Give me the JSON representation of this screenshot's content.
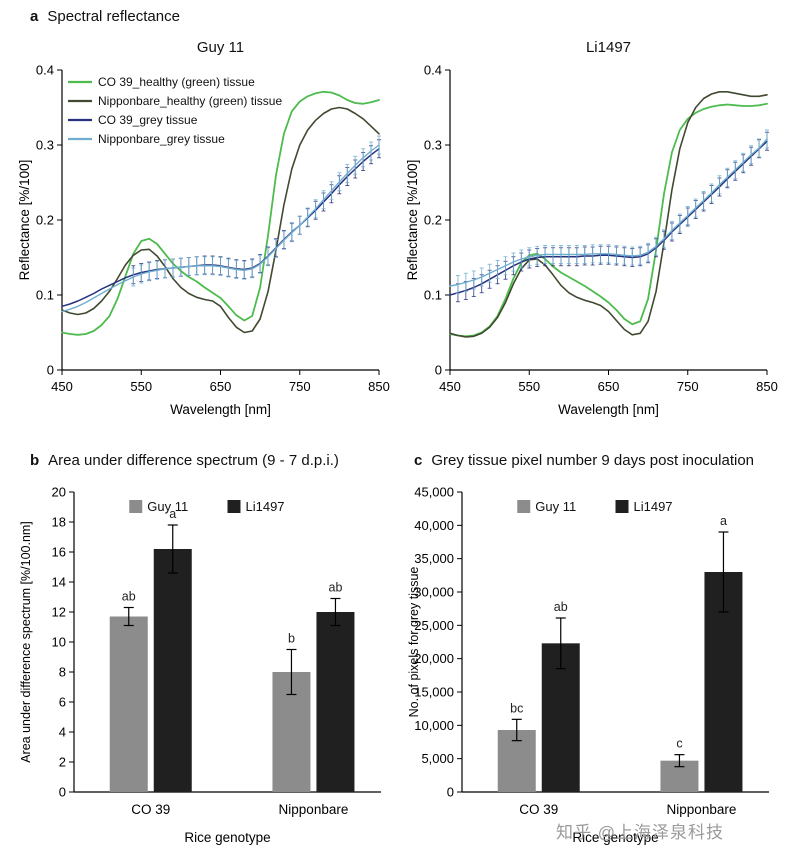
{
  "panels": {
    "a": {
      "letter": "a",
      "title": "Spectral reflectance"
    },
    "b": {
      "letter": "b",
      "title": "Area under difference spectrum (9 - 7 d.p.i.)"
    },
    "c": {
      "letter": "c",
      "title": "Grey tissue pixel number 9 days post inoculation"
    }
  },
  "watermark": "知乎 @上海泽泉科技",
  "colors": {
    "healthy_co39": "#4dbb4d",
    "healthy_nipponbare": "#404a30",
    "grey_co39": "#27317e",
    "grey_nipponbare": "#6faecf",
    "bar_guy11": "#8c8c8c",
    "bar_li1497": "#202020"
  },
  "chart_data": [
    {
      "type": "line",
      "title": "Guy 11",
      "xlabel": "Wavelength [nm]",
      "ylabel": "Reflectance [%/100]",
      "xlim": [
        450,
        850
      ],
      "ylim": [
        0,
        0.4
      ],
      "xticks": [
        450,
        550,
        650,
        750,
        850
      ],
      "yticks": [
        0,
        0.1,
        0.2,
        0.3,
        0.4
      ],
      "legend": true,
      "x": {
        "start": 450,
        "step": 10,
        "count": 41
      },
      "series": [
        {
          "name": "CO 39_healthy (green) tissue",
          "color": "#4dbb4d",
          "width": 1.8,
          "y": [
            0.05,
            0.048,
            0.047,
            0.048,
            0.052,
            0.06,
            0.072,
            0.095,
            0.125,
            0.155,
            0.172,
            0.175,
            0.168,
            0.155,
            0.142,
            0.132,
            0.124,
            0.118,
            0.11,
            0.103,
            0.096,
            0.085,
            0.073,
            0.066,
            0.072,
            0.11,
            0.18,
            0.26,
            0.315,
            0.345,
            0.358,
            0.365,
            0.369,
            0.371,
            0.37,
            0.366,
            0.36,
            0.356,
            0.355,
            0.357,
            0.36
          ]
        },
        {
          "name": "Nipponbare_healthy (green) tissue",
          "color": "#404a30",
          "width": 1.6,
          "y": [
            0.08,
            0.076,
            0.074,
            0.076,
            0.082,
            0.092,
            0.105,
            0.122,
            0.14,
            0.153,
            0.16,
            0.161,
            0.152,
            0.138,
            0.122,
            0.11,
            0.102,
            0.097,
            0.094,
            0.092,
            0.085,
            0.07,
            0.057,
            0.05,
            0.052,
            0.068,
            0.105,
            0.16,
            0.22,
            0.268,
            0.3,
            0.32,
            0.333,
            0.342,
            0.348,
            0.35,
            0.348,
            0.342,
            0.335,
            0.325,
            0.315
          ]
        },
        {
          "name": "CO 39_grey tissue",
          "color": "#27317e",
          "width": 1.5,
          "error": 0.012,
          "error_from": 540,
          "y": [
            0.085,
            0.088,
            0.092,
            0.097,
            0.102,
            0.108,
            0.113,
            0.118,
            0.123,
            0.127,
            0.13,
            0.132,
            0.134,
            0.135,
            0.136,
            0.137,
            0.138,
            0.139,
            0.14,
            0.14,
            0.139,
            0.137,
            0.135,
            0.134,
            0.136,
            0.142,
            0.152,
            0.163,
            0.174,
            0.184,
            0.193,
            0.203,
            0.213,
            0.224,
            0.235,
            0.247,
            0.258,
            0.268,
            0.278,
            0.287,
            0.295
          ]
        },
        {
          "name": "Nipponbare_grey tissue",
          "color": "#6faecf",
          "width": 1.4,
          "error": 0.012,
          "error_from": 540,
          "y": [
            0.078,
            0.081,
            0.085,
            0.09,
            0.096,
            0.102,
            0.108,
            0.114,
            0.119,
            0.124,
            0.128,
            0.131,
            0.133,
            0.135,
            0.136,
            0.137,
            0.138,
            0.139,
            0.139,
            0.139,
            0.138,
            0.136,
            0.134,
            0.133,
            0.135,
            0.141,
            0.151,
            0.162,
            0.173,
            0.183,
            0.193,
            0.204,
            0.215,
            0.227,
            0.239,
            0.251,
            0.262,
            0.273,
            0.283,
            0.292,
            0.3
          ]
        }
      ]
    },
    {
      "type": "line",
      "title": "Li1497",
      "xlabel": "Wavelength [nm]",
      "ylabel": "Reflectance [%/100]",
      "xlim": [
        450,
        850
      ],
      "ylim": [
        0,
        0.4
      ],
      "xticks": [
        450,
        550,
        650,
        750,
        850
      ],
      "yticks": [
        0,
        0.1,
        0.2,
        0.3,
        0.4
      ],
      "legend": false,
      "x": {
        "start": 450,
        "step": 10,
        "count": 41
      },
      "series": [
        {
          "name": "CO 39_healthy (green) tissue",
          "color": "#4dbb4d",
          "width": 1.8,
          "y": [
            0.048,
            0.046,
            0.045,
            0.046,
            0.05,
            0.058,
            0.072,
            0.095,
            0.122,
            0.143,
            0.153,
            0.155,
            0.148,
            0.138,
            0.13,
            0.124,
            0.118,
            0.112,
            0.105,
            0.098,
            0.09,
            0.08,
            0.068,
            0.061,
            0.065,
            0.095,
            0.16,
            0.235,
            0.29,
            0.32,
            0.335,
            0.343,
            0.348,
            0.351,
            0.353,
            0.354,
            0.353,
            0.352,
            0.352,
            0.353,
            0.355
          ]
        },
        {
          "name": "Nipponbare_healthy (green) tissue",
          "color": "#404a30",
          "width": 1.6,
          "y": [
            0.049,
            0.046,
            0.044,
            0.045,
            0.049,
            0.057,
            0.07,
            0.09,
            0.115,
            0.135,
            0.147,
            0.148,
            0.14,
            0.127,
            0.113,
            0.103,
            0.097,
            0.093,
            0.09,
            0.086,
            0.078,
            0.066,
            0.054,
            0.047,
            0.049,
            0.065,
            0.105,
            0.17,
            0.24,
            0.295,
            0.33,
            0.35,
            0.362,
            0.368,
            0.371,
            0.371,
            0.369,
            0.367,
            0.365,
            0.365,
            0.367
          ]
        },
        {
          "name": "CO 39_grey tissue",
          "color": "#27317e",
          "width": 1.5,
          "error": 0.012,
          "error_from": 460,
          "y": [
            0.1,
            0.103,
            0.106,
            0.11,
            0.115,
            0.121,
            0.127,
            0.133,
            0.139,
            0.144,
            0.148,
            0.15,
            0.151,
            0.151,
            0.151,
            0.151,
            0.151,
            0.152,
            0.152,
            0.153,
            0.153,
            0.152,
            0.151,
            0.15,
            0.151,
            0.155,
            0.163,
            0.173,
            0.184,
            0.194,
            0.204,
            0.214,
            0.224,
            0.234,
            0.244,
            0.255,
            0.265,
            0.275,
            0.285,
            0.295,
            0.305
          ]
        },
        {
          "name": "Nipponbare_grey tissue",
          "color": "#6faecf",
          "width": 1.4,
          "error": 0.012,
          "error_from": 460,
          "y": [
            0.112,
            0.114,
            0.117,
            0.12,
            0.124,
            0.129,
            0.134,
            0.139,
            0.144,
            0.148,
            0.151,
            0.153,
            0.154,
            0.154,
            0.154,
            0.154,
            0.154,
            0.154,
            0.155,
            0.155,
            0.155,
            0.154,
            0.153,
            0.152,
            0.153,
            0.157,
            0.165,
            0.175,
            0.186,
            0.196,
            0.206,
            0.216,
            0.226,
            0.236,
            0.247,
            0.257,
            0.267,
            0.277,
            0.287,
            0.296,
            0.308
          ]
        }
      ]
    },
    {
      "type": "bar",
      "title": "Area under difference spectrum (9 - 7 d.p.i.)",
      "categories": [
        "CO 39",
        "Nipponbare"
      ],
      "series": [
        {
          "name": "Guy 11",
          "color": "#8c8c8c",
          "values": [
            11.7,
            8.0
          ],
          "errors": [
            0.6,
            1.5
          ],
          "letters": [
            "ab",
            "b"
          ]
        },
        {
          "name": "Li1497",
          "color": "#202020",
          "values": [
            16.2,
            12.0
          ],
          "errors": [
            1.6,
            0.9
          ],
          "letters": [
            "a",
            "ab"
          ]
        }
      ],
      "ylabel": "Area under difference spectrum [%/100.nm]",
      "xlabel": "Rice genotype",
      "ylim": [
        0,
        20
      ],
      "ytick_step": 2,
      "comma": false
    },
    {
      "type": "bar",
      "title": "Grey tissue pixel number 9 days post inoculation",
      "categories": [
        "CO 39",
        "Nipponbare"
      ],
      "series": [
        {
          "name": "Guy 11",
          "color": "#8c8c8c",
          "values": [
            9300,
            4700
          ],
          "errors": [
            1600,
            900
          ],
          "letters": [
            "bc",
            "c"
          ]
        },
        {
          "name": "Li1497",
          "color": "#202020",
          "values": [
            22300,
            33000
          ],
          "errors": [
            3800,
            6000
          ],
          "letters": [
            "ab",
            "a"
          ]
        }
      ],
      "ylabel": "No. of pixels for grey tissue",
      "xlabel": "Rice genotype",
      "ylim": [
        0,
        45000
      ],
      "ytick_step": 5000,
      "comma": true
    }
  ]
}
